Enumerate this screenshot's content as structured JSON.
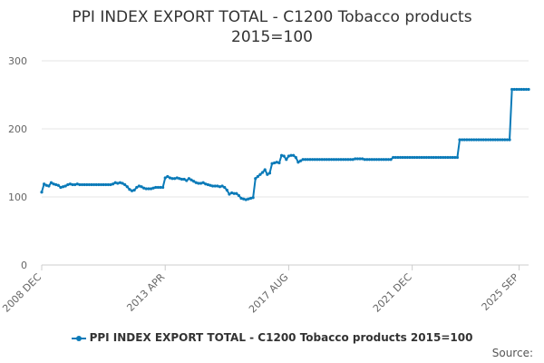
{
  "chart_data": {
    "type": "line",
    "title": "PPI INDEX EXPORT TOTAL - C1200 Tobacco products 2015=100",
    "title_lines": [
      "PPI INDEX EXPORT TOTAL - C1200 Tobacco products",
      "2015=100"
    ],
    "xlabel": "",
    "ylabel": "",
    "ylim": [
      0,
      300
    ],
    "yticks": [
      0,
      100,
      200,
      300
    ],
    "x_tick_labels": [
      "2008 DEC",
      "2013 APR",
      "2017 AUG",
      "2021 DEC",
      "2025 SEP"
    ],
    "x_tick_positions": [
      0,
      52,
      104,
      156,
      201
    ],
    "grid": true,
    "legend_position": "bottom",
    "color": "#0a7ab8",
    "series": [
      {
        "name": "PPI INDEX EXPORT TOTAL - C1200 Tobacco products 2015=100",
        "x_start": "2008 DEC",
        "frequency": "monthly",
        "values": [
          107,
          119,
          117,
          116,
          121,
          119,
          118,
          117,
          114,
          115,
          116,
          118,
          119,
          118,
          118,
          119,
          118,
          118,
          118,
          118,
          118,
          118,
          118,
          118,
          118,
          118,
          118,
          118,
          118,
          118,
          119,
          121,
          120,
          121,
          120,
          118,
          115,
          111,
          109,
          110,
          114,
          116,
          115,
          113,
          112,
          112,
          112,
          113,
          114,
          114,
          114,
          114,
          128,
          130,
          128,
          127,
          127,
          128,
          127,
          126,
          126,
          124,
          127,
          125,
          123,
          121,
          120,
          120,
          121,
          119,
          118,
          117,
          116,
          116,
          116,
          115,
          116,
          114,
          110,
          104,
          106,
          105,
          105,
          102,
          98,
          97,
          96,
          97,
          98,
          99,
          127,
          130,
          133,
          136,
          140,
          133,
          135,
          149,
          150,
          151,
          150,
          161,
          160,
          155,
          160,
          161,
          161,
          158,
          151,
          153,
          155,
          155,
          155,
          155,
          155,
          155,
          155,
          155,
          155,
          155,
          155,
          155,
          155,
          155,
          155,
          155,
          155,
          155,
          155,
          155,
          155,
          155,
          156,
          156,
          156,
          156,
          155,
          155,
          155,
          155,
          155,
          155,
          155,
          155,
          155,
          155,
          155,
          155,
          158,
          158,
          158,
          158,
          158,
          158,
          158,
          158,
          158,
          158,
          158,
          158,
          158,
          158,
          158,
          158,
          158,
          158,
          158,
          158,
          158,
          158,
          158,
          158,
          158,
          158,
          158,
          158,
          184,
          184,
          184,
          184,
          184,
          184,
          184,
          184,
          184,
          184,
          184,
          184,
          184,
          184,
          184,
          184,
          184,
          184,
          184,
          184,
          184,
          184,
          258,
          258,
          258,
          258,
          258,
          258,
          258,
          258
        ]
      }
    ]
  },
  "source_label": "Source:"
}
